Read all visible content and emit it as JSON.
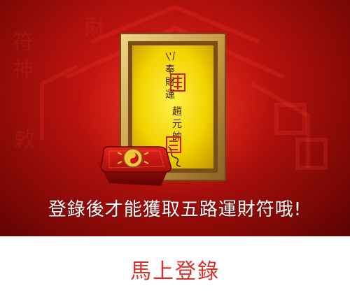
{
  "banner": {
    "prompt_text": "登錄後才能獲取五路運財符哦!",
    "talisman_glyphs": [
      "奉",
      "趙",
      "元",
      "帥",
      "運",
      "財"
    ]
  },
  "login_button": {
    "label": "馬上登錄"
  },
  "colors": {
    "banner_red": "#b8110d",
    "frame_gold": "#d9b45a",
    "paper_yellow": "#f2d300",
    "accent_red": "#d8312a",
    "white": "#ffffff"
  }
}
